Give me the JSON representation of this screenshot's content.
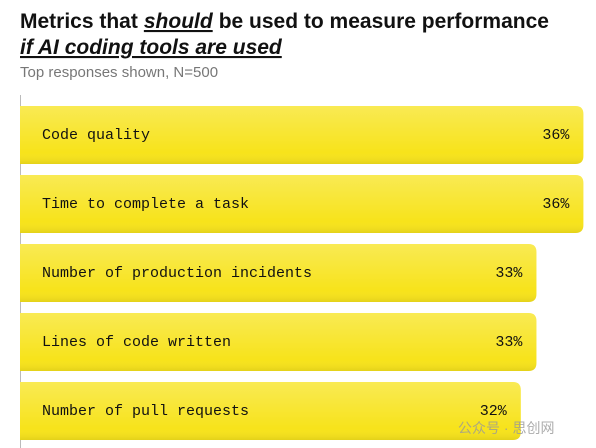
{
  "chart_data": {
    "type": "bar",
    "orientation": "horizontal",
    "title": [
      "Metrics that",
      "should",
      "be used to measure performance",
      "if AI coding tools are used"
    ],
    "subtitle": "Top responses shown, N=500",
    "categories": [
      "Code quality",
      "Time to complete a task",
      "Number of production incidents",
      "Lines of code written",
      "Number of pull requests"
    ],
    "values": [
      36,
      36,
      33,
      33,
      32
    ],
    "value_labels": [
      "36%",
      "36%",
      "33%",
      "33%",
      "32%"
    ],
    "color": "#f7e31b",
    "watermark": "公众号 · 思创网"
  }
}
